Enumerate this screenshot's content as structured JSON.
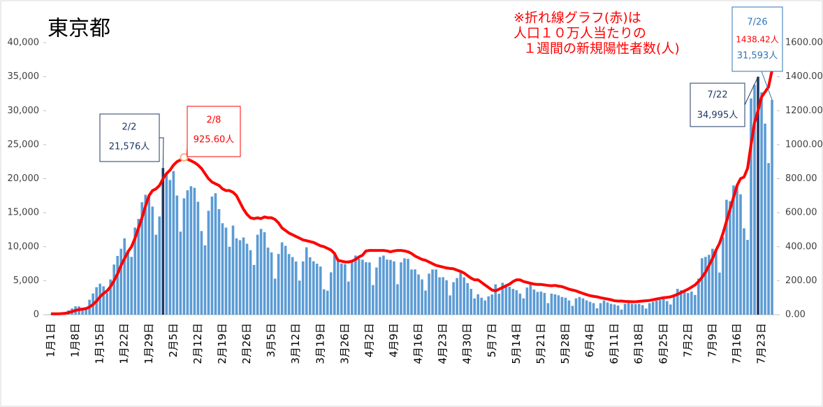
{
  "chart_data": {
    "type": "bar_line",
    "title": "東京都",
    "note": [
      "※折れ線グラフ(赤)は",
      "人口１０万人当たりの",
      "１週間の新規陽性者数(人)"
    ],
    "annotations": [
      "2/2",
      "2/8",
      "7/22",
      "7/26"
    ],
    "categories": [
      "1月1日",
      null,
      null,
      null,
      null,
      null,
      null,
      "1月8日",
      null,
      null,
      null,
      null,
      null,
      null,
      "1月15日",
      null,
      null,
      null,
      null,
      null,
      null,
      "1月22日",
      null,
      null,
      null,
      null,
      null,
      null,
      "1月29日",
      null,
      null,
      null,
      null,
      null,
      null,
      "2月5日",
      null,
      null,
      null,
      null,
      null,
      null,
      "2月12日",
      null,
      null,
      null,
      null,
      null,
      null,
      "2月19日",
      null,
      null,
      null,
      null,
      null,
      null,
      "2月26日",
      null,
      null,
      null,
      null,
      null,
      null,
      "3月5日",
      null,
      null,
      null,
      null,
      null,
      null,
      "3月12日",
      null,
      null,
      null,
      null,
      null,
      null,
      "3月19日",
      null,
      null,
      null,
      null,
      null,
      null,
      "3月26日",
      null,
      null,
      null,
      null,
      null,
      null,
      "4月2日",
      null,
      null,
      null,
      null,
      null,
      null,
      "4月9日",
      null,
      null,
      null,
      null,
      null,
      null,
      "4月16日",
      null,
      null,
      null,
      null,
      null,
      null,
      "4月23日",
      null,
      null,
      null,
      null,
      null,
      null,
      "4月30日",
      null,
      null,
      null,
      null,
      null,
      null,
      "5月7日",
      null,
      null,
      null,
      null,
      null,
      null,
      "5月14日",
      null,
      null,
      null,
      null,
      null,
      null,
      "5月21日",
      null,
      null,
      null,
      null,
      null,
      null,
      "5月28日",
      null,
      null,
      null,
      null,
      null,
      null,
      "6月4日",
      null,
      null,
      null,
      null,
      null,
      null,
      "6月11日",
      null,
      null,
      null,
      null,
      null,
      null,
      "6月18日",
      null,
      null,
      null,
      null,
      null,
      null,
      "6月25日",
      null,
      null,
      null,
      null,
      null,
      null,
      "7月2日",
      null,
      null,
      null,
      null,
      null,
      null,
      "7月9日",
      null,
      null,
      null,
      null,
      null,
      null,
      "7月16日",
      null,
      null,
      null,
      null,
      null,
      null,
      "7月23日",
      null,
      null,
      null
    ],
    "series": [
      {
        "color": "#5b9bd5",
        "highlight_color": "#1f3864",
        "values": [
          79,
          84,
          103,
          151,
          390,
          641,
          922,
          1224,
          1223,
          871,
          962,
          2198,
          3124,
          4051,
          4561,
          4172,
          3201,
          5185,
          7377,
          8638,
          9699,
          11227,
          9468,
          8503,
          12813,
          14086,
          16538,
          17631,
          17433,
          15895,
          11751,
          14445,
          21576,
          20679,
          19798,
          21121,
          17526,
          12214,
          17113,
          18287,
          18891,
          18660,
          16611,
          12302,
          10205,
          15280,
          17369,
          17864,
          15525,
          13446,
          12807,
          9993,
          13103,
          11228,
          10955,
          11358,
          10437,
          9483,
          7314,
          11755,
          12612,
          12126,
          9862,
          9165,
          5298,
          8934,
          10638,
          10121,
          8920,
          8470,
          7819,
          5017,
          7837,
          9914,
          8445,
          7859,
          7498,
          7081,
          3735,
          3526,
          6228,
          8799,
          8087,
          7523,
          7424,
          4876,
          7888,
          8700,
          8227,
          8079,
          7726,
          7690,
          4361,
          6942,
          8491,
          8693,
          8112,
          8052,
          7836,
          4481,
          7697,
          8284,
          8213,
          6646,
          6660,
          5916,
          5188,
          3546,
          6037,
          6651,
          6647,
          5497,
          5513,
          5066,
          2836,
          4782,
          5390,
          6199,
          5500,
          4650,
          3800,
          2396,
          3000,
          2500,
          2100,
          2700,
          2968,
          4468,
          3084,
          4700,
          4400,
          4100,
          3800,
          3600,
          3100,
          2400,
          4000,
          4500,
          3700,
          3350,
          3400,
          3200,
          1700,
          3100,
          3000,
          2850,
          2600,
          2500,
          2100,
          1300,
          2400,
          2600,
          2400,
          2100,
          1900,
          1700,
          940,
          1700,
          2100,
          1800,
          1600,
          1500,
          1350,
          750,
          1600,
          1700,
          1600,
          1550,
          1600,
          1400,
          900,
          1700,
          1900,
          2050,
          2150,
          2300,
          2000,
          1500,
          2800,
          3800,
          3600,
          3500,
          3200,
          3400,
          2900,
          5300,
          8300,
          8500,
          8800,
          9700,
          9600,
          6200,
          11400,
          16900,
          16700,
          19000,
          18900,
          17700,
          12700,
          11000,
          31800,
          33800,
          34995,
          32700,
          28100,
          22300,
          31593
        ],
        "value_labels": [
          null,
          null,
          null,
          null,
          null,
          null,
          null,
          null,
          null,
          null,
          null,
          null,
          null,
          null,
          null,
          null,
          null,
          null,
          null,
          null,
          null,
          null,
          null,
          null,
          null,
          null,
          null,
          null,
          null,
          null,
          null,
          null,
          "21,576人",
          null,
          null,
          null,
          null,
          null,
          null,
          null,
          null,
          null,
          null,
          null,
          null,
          null,
          null,
          null,
          null,
          null,
          null,
          null,
          null,
          null,
          null,
          null,
          null,
          null,
          null,
          null,
          null,
          null,
          null,
          null,
          null,
          null,
          null,
          null,
          null,
          null,
          null,
          null,
          null,
          null,
          null,
          null,
          null,
          null,
          null,
          null,
          null,
          null,
          null,
          null,
          null,
          null,
          null,
          null,
          null,
          null,
          null,
          null,
          null,
          null,
          null,
          null,
          null,
          null,
          null,
          null,
          null,
          null,
          null,
          null,
          null,
          null,
          null,
          null,
          null,
          null,
          null,
          null,
          null,
          null,
          null,
          null,
          null,
          null,
          null,
          null,
          null,
          null,
          null,
          null,
          null,
          null,
          null,
          null,
          null,
          null,
          null,
          null,
          null,
          null,
          null,
          null,
          null,
          null,
          null,
          null,
          null,
          null,
          null,
          null,
          null,
          null,
          null,
          null,
          null,
          null,
          null,
          null,
          null,
          null,
          null,
          null,
          null,
          null,
          null,
          null,
          null,
          null,
          null,
          null,
          null,
          null,
          null,
          null,
          null,
          null,
          null,
          null,
          null,
          null,
          null,
          null,
          null,
          null,
          null,
          null,
          null,
          null,
          null,
          null,
          null,
          null,
          null,
          null,
          null,
          null,
          null,
          null,
          null,
          null,
          null,
          null,
          null,
          null,
          null,
          null,
          null,
          null,
          "34,995人",
          null,
          null,
          null,
          "31,593人"
        ]
      },
      {
        "type": "line",
        "axis": "y2",
        "color": "#ff0000",
        "values": [
          5,
          5,
          5,
          6,
          8,
          12,
          18,
          25,
          30,
          33,
          36,
          45,
          60,
          80,
          105,
          125,
          140,
          165,
          200,
          240,
          290,
          330,
          370,
          400,
          450,
          510,
          570,
          640,
          700,
          730,
          740,
          760,
          800,
          830,
          850,
          880,
          900,
          910,
          925.6,
          915,
          905,
          895,
          880,
          860,
          830,
          800,
          780,
          770,
          760,
          740,
          730,
          730,
          720,
          700,
          660,
          620,
          590,
          570,
          565,
          570,
          565,
          575,
          570,
          570,
          560,
          540,
          510,
          495,
          480,
          470,
          460,
          450,
          440,
          435,
          430,
          425,
          415,
          405,
          400,
          390,
          380,
          360,
          320,
          315,
          310,
          310,
          315,
          325,
          340,
          350,
          375,
          378,
          378,
          378,
          378,
          378,
          375,
          370,
          375,
          378,
          378,
          375,
          370,
          360,
          345,
          335,
          325,
          320,
          310,
          300,
          290,
          285,
          280,
          275,
          272,
          270,
          262,
          255,
          245,
          230,
          215,
          205,
          205,
          190,
          175,
          160,
          145,
          140,
          150,
          160,
          170,
          180,
          195,
          205,
          205,
          195,
          190,
          185,
          180,
          178,
          178,
          175,
          172,
          170,
          172,
          168,
          165,
          158,
          150,
          145,
          140,
          132,
          125,
          118,
          112,
          108,
          105,
          100,
          96,
          92,
          88,
          82,
          80,
          80,
          78,
          77,
          76,
          76,
          78,
          80,
          82,
          84,
          88,
          92,
          96,
          100,
          102,
          105,
          112,
          120,
          130,
          140,
          150,
          162,
          175,
          195,
          220,
          250,
          290,
          330,
          380,
          420,
          480,
          550,
          620,
          690,
          760,
          800,
          810,
          860,
          1000,
          1130,
          1200,
          1280,
          1310,
          1340,
          1438.42
        ],
        "value_labels": [
          null,
          null,
          null,
          null,
          null,
          null,
          null,
          null,
          null,
          null,
          null,
          null,
          null,
          null,
          null,
          null,
          null,
          null,
          null,
          null,
          null,
          null,
          null,
          null,
          null,
          null,
          null,
          null,
          null,
          null,
          null,
          null,
          null,
          null,
          null,
          null,
          null,
          null,
          "925.60人",
          null,
          null,
          null,
          null,
          null,
          null,
          null,
          null,
          null,
          null,
          null,
          null,
          null,
          null,
          null,
          null,
          null,
          null,
          null,
          null,
          null,
          null,
          null,
          null,
          null,
          null,
          null,
          null,
          null,
          null,
          null,
          null,
          null,
          null,
          null,
          null,
          null,
          null,
          null,
          null,
          null,
          null,
          null,
          null,
          null,
          null,
          null,
          null,
          null,
          null,
          null,
          null,
          null,
          null,
          null,
          null,
          null,
          null,
          null,
          null,
          null,
          null,
          null,
          null,
          null,
          null,
          null,
          null,
          null,
          null,
          null,
          null,
          null,
          null,
          null,
          null,
          null,
          null,
          null,
          null,
          null,
          null,
          null,
          null,
          null,
          null,
          null,
          null,
          null,
          null,
          null,
          null,
          null,
          null,
          null,
          null,
          null,
          null,
          null,
          null,
          null,
          null,
          null,
          null,
          null,
          null,
          null,
          null,
          null,
          null,
          null,
          null,
          null,
          null,
          null,
          null,
          null,
          null,
          null,
          null,
          null,
          null,
          null,
          null,
          null,
          null,
          null,
          null,
          null,
          null,
          null,
          null,
          null,
          null,
          null,
          null,
          null,
          null,
          null,
          null,
          null,
          null,
          null,
          null,
          null,
          null,
          null,
          null,
          null,
          null,
          null,
          null,
          null,
          null,
          null,
          null,
          null,
          null,
          null,
          null,
          null,
          null,
          null,
          null,
          null,
          null,
          null,
          "1438.42人"
        ]
      }
    ],
    "ylim": [
      0,
      40000
    ],
    "yticks": [
      0,
      {
        "value": 5000,
        "label": "5,000"
      },
      {
        "value": 10000,
        "label": "10,000"
      },
      {
        "value": 15000,
        "label": "15,000"
      },
      {
        "value": 20000,
        "label": "20,000"
      },
      {
        "value": 25000,
        "label": "25,000"
      },
      {
        "value": 30000,
        "label": "30,000"
      },
      {
        "value": 35000,
        "label": "35,000"
      },
      {
        "value": 40000,
        "label": "40,000"
      }
    ],
    "y2lim": [
      0,
      1600
    ],
    "y2ticks": [
      {
        "value": 0,
        "label": "0.00"
      },
      {
        "value": 200,
        "label": "200.00"
      },
      {
        "value": 400,
        "label": "400.00"
      },
      {
        "value": 600,
        "label": "600.00"
      },
      {
        "value": 800,
        "label": "800.00"
      },
      {
        "value": 1000,
        "label": "1000.00"
      },
      {
        "value": 1200,
        "label": "1200.00"
      },
      {
        "value": 1400,
        "label": "1400.00"
      },
      {
        "value": 1600,
        "label": "1600.00"
      }
    ]
  }
}
